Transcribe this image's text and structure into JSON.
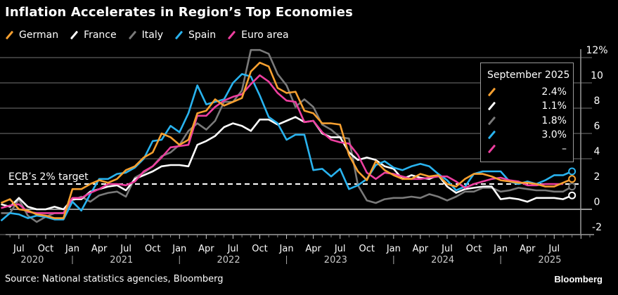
{
  "title": "Inflation Accelerates in Region’s Top Economies",
  "source": "Source: National statistics agencies, Bloomberg",
  "brand": "Bloomberg",
  "target_label": "ECB’s 2% target",
  "colors": {
    "German": "#f7a030",
    "France": "#ffffff",
    "Italy": "#7a7a7a",
    "Spain": "#29b3ef",
    "Euro area": "#ee3fa0",
    "grid": "#3a3a3a",
    "zero": "#9a9a9a",
    "axis_text": "#ffffff",
    "year_text": "#c9c9c9"
  },
  "latest_box": {
    "title": "September 2025",
    "rows": [
      {
        "series": "German",
        "value": "2.4%"
      },
      {
        "series": "France",
        "value": "1.1%"
      },
      {
        "series": "Italy",
        "value": "1.8%"
      },
      {
        "series": "Spain",
        "value": "3.0%"
      },
      {
        "series": "Euro area",
        "value": "–"
      }
    ]
  },
  "chart_data": {
    "type": "line",
    "title": "Inflation Accelerates in Region’s Top Economies",
    "xlabel": "",
    "ylabel": "",
    "y_unit": "%",
    "ylim": [
      -2.5,
      12.5
    ],
    "yticks": [
      -2,
      0,
      2,
      4,
      6,
      8,
      10,
      12
    ],
    "ytick_labels": [
      "-2",
      "0",
      "2",
      "4",
      "6",
      "8",
      "10",
      "12%"
    ],
    "reference_line": {
      "value": 2,
      "label": "ECB’s 2% target",
      "style": "dashed"
    },
    "x_start": "2020-05",
    "x_end": "2025-09",
    "month_tick_labels": [
      "Jul",
      "Oct",
      "Jan",
      "Apr",
      "Jul",
      "Oct",
      "Jan",
      "Apr",
      "Jul",
      "Oct",
      "Jan",
      "Apr",
      "Jul",
      "Oct",
      "Jan",
      "Apr",
      "Jul",
      "Oct",
      "Jan",
      "Apr",
      "Jul"
    ],
    "month_tick_dates": [
      "2020-07",
      "2020-10",
      "2021-01",
      "2021-04",
      "2021-07",
      "2021-10",
      "2022-01",
      "2022-04",
      "2022-07",
      "2022-10",
      "2023-01",
      "2023-04",
      "2023-07",
      "2023-10",
      "2024-01",
      "2024-04",
      "2024-07",
      "2024-10",
      "2025-01",
      "2025-04",
      "2025-07"
    ],
    "year_labels": [
      "2020",
      "2021",
      "2022",
      "2023",
      "2024",
      "2025"
    ],
    "legend": [
      "German",
      "France",
      "Italy",
      "Spain",
      "Euro area"
    ],
    "legend_position": "top-left",
    "series": [
      {
        "name": "German",
        "values": [
          0.5,
          0.8,
          0.0,
          -0.1,
          -0.4,
          -0.5,
          -0.7,
          -0.7,
          1.6,
          1.6,
          2.0,
          2.3,
          2.1,
          2.4,
          3.1,
          3.4,
          4.1,
          4.5,
          6.0,
          5.7,
          5.1,
          5.5,
          7.6,
          7.8,
          8.7,
          8.2,
          8.5,
          8.8,
          10.9,
          11.6,
          11.3,
          9.6,
          9.2,
          9.3,
          7.8,
          7.6,
          6.8,
          6.8,
          6.7,
          4.3,
          3.0,
          2.3,
          3.8,
          3.1,
          2.7,
          2.4,
          2.4,
          2.8,
          2.6,
          2.7,
          2.0,
          1.8,
          2.4,
          2.8,
          2.8,
          2.6,
          2.3,
          2.2,
          2.1,
          2.1,
          2.0,
          1.8,
          1.8,
          2.1,
          2.4
        ]
      },
      {
        "name": "France",
        "values": [
          0.4,
          0.2,
          0.9,
          0.2,
          0.0,
          0.0,
          0.2,
          0.0,
          0.8,
          0.8,
          1.4,
          1.6,
          1.8,
          1.9,
          1.5,
          2.4,
          2.7,
          3.0,
          3.4,
          3.5,
          3.5,
          3.4,
          5.1,
          5.4,
          5.8,
          6.5,
          6.8,
          6.6,
          6.2,
          7.1,
          7.1,
          6.7,
          7.0,
          7.3,
          6.9,
          7.0,
          6.0,
          5.7,
          5.7,
          4.5,
          3.9,
          4.1,
          3.9,
          3.4,
          3.2,
          2.4,
          2.7,
          2.5,
          2.4,
          2.7,
          1.8,
          1.3,
          1.6,
          1.7,
          1.8,
          1.8,
          0.8,
          0.9,
          0.8,
          0.6,
          0.9,
          0.9,
          0.9,
          0.8,
          1.1
        ]
      },
      {
        "name": "Italy",
        "values": [
          -0.3,
          -0.3,
          0.8,
          -0.5,
          -1.0,
          -0.6,
          -0.3,
          -0.3,
          0.7,
          1.0,
          0.6,
          1.1,
          1.3,
          1.4,
          1.0,
          2.5,
          2.9,
          3.4,
          4.2,
          4.5,
          5.1,
          6.2,
          6.8,
          6.3,
          7.0,
          8.5,
          8.5,
          9.4,
          12.6,
          12.6,
          12.3,
          10.7,
          9.8,
          8.1,
          8.7,
          8.1,
          6.7,
          6.3,
          5.7,
          5.6,
          1.9,
          0.7,
          0.5,
          0.8,
          0.9,
          0.9,
          1.0,
          0.9,
          1.2,
          1.0,
          0.7,
          1.0,
          1.4,
          1.4,
          1.7,
          1.7,
          1.4,
          1.5,
          1.7,
          1.6,
          1.5,
          1.5,
          1.4,
          1.4,
          1.8
        ]
      },
      {
        "name": "Spain",
        "values": [
          -0.9,
          -0.3,
          -0.4,
          -0.7,
          -0.5,
          -0.6,
          -0.8,
          -0.8,
          0.6,
          -0.1,
          1.2,
          2.4,
          2.4,
          2.8,
          2.9,
          3.3,
          4.0,
          5.4,
          5.5,
          6.6,
          6.1,
          7.6,
          9.8,
          8.3,
          8.5,
          8.7,
          10.0,
          10.7,
          10.5,
          9.0,
          7.3,
          6.8,
          5.5,
          5.9,
          5.9,
          3.1,
          3.2,
          2.6,
          3.2,
          1.6,
          1.9,
          2.4,
          3.5,
          3.8,
          3.3,
          3.1,
          3.4,
          3.6,
          3.4,
          2.8,
          2.3,
          1.5,
          1.8,
          2.8,
          3.0,
          3.0,
          3.0,
          2.2,
          2.0,
          2.2,
          2.0,
          2.3,
          2.7,
          2.7,
          3.0
        ]
      },
      {
        "name": "Euro area",
        "values": [
          0.1,
          0.3,
          0.4,
          -0.2,
          -0.3,
          -0.3,
          -0.3,
          -0.3,
          0.9,
          0.9,
          1.3,
          1.6,
          2.0,
          2.0,
          1.9,
          2.2,
          3.0,
          3.4,
          4.1,
          4.9,
          5.0,
          5.1,
          7.4,
          7.4,
          8.1,
          8.6,
          8.9,
          9.1,
          9.9,
          10.6,
          10.1,
          9.2,
          8.6,
          8.5,
          6.9,
          7.0,
          6.1,
          5.5,
          5.3,
          5.2,
          4.3,
          2.9,
          2.4,
          2.9,
          2.8,
          2.6,
          2.4,
          2.4,
          2.5,
          2.6,
          2.6,
          2.2,
          1.7,
          2.0,
          2.2,
          2.4,
          2.5,
          2.3,
          2.2,
          1.9,
          1.9,
          2.0,
          2.0,
          2.0,
          null
        ]
      }
    ]
  }
}
